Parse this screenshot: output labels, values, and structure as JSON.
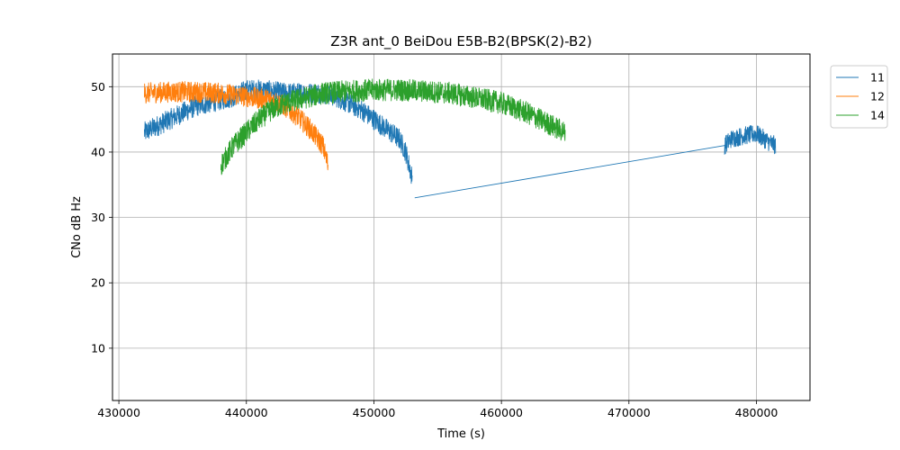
{
  "chart_data": {
    "type": "line",
    "title": "Z3R ant_0 BeiDou E5B-B2(BPSK(2)-B2)",
    "xlabel": "Time (s)",
    "ylabel": "CNo dB Hz",
    "xlim": [
      429500,
      484200
    ],
    "ylim": [
      2,
      55
    ],
    "xticks": [
      430000,
      440000,
      450000,
      460000,
      470000,
      480000
    ],
    "yticks": [
      10,
      20,
      30,
      40,
      50
    ],
    "grid": true,
    "legend_position": "outside-top-right",
    "series": [
      {
        "name": "11",
        "color": "#1f77b4",
        "segments": [
          {
            "x": [
              432000,
              433000,
              434000,
              435000,
              436000,
              437000,
              438000,
              439000,
              440000,
              441000,
              442000,
              443000,
              444000,
              445000,
              446000,
              447000,
              448000,
              449000,
              450000,
              451000,
              452000,
              452500,
              453000
            ],
            "y": [
              43,
              44,
              45,
              46,
              47,
              47.5,
              48,
              48.5,
              49.5,
              49.5,
              49.3,
              49,
              49,
              49,
              49,
              48.5,
              47.5,
              46.5,
              45,
              43.5,
              42,
              40,
              36
            ],
            "noise": 1.6
          },
          {
            "x": [
              453200,
              477500
            ],
            "y": [
              33,
              41
            ],
            "noise": 0
          },
          {
            "x": [
              477500,
              478000,
              479000,
              480000,
              481000,
              481500
            ],
            "y": [
              41,
              42,
              42.5,
              42.8,
              41.5,
              41
            ],
            "noise": 1.4
          }
        ]
      },
      {
        "name": "12",
        "color": "#ff7f0e",
        "segments": [
          {
            "x": [
              432000,
              434000,
              436000,
              438000,
              440000,
              441000,
              442000,
              443000,
              444000,
              445000,
              446000,
              446400
            ],
            "y": [
              49,
              49.2,
              49.2,
              49,
              48.5,
              48.2,
              48,
              47,
              45.5,
              43.5,
              41,
              38
            ],
            "noise": 1.6
          }
        ]
      },
      {
        "name": "14",
        "color": "#2ca02c",
        "segments": [
          {
            "x": [
              438000,
              439000,
              440000,
              441000,
              442000,
              443000,
              444000,
              446000,
              448000,
              450000,
              452000,
              454000,
              456000,
              458000,
              460000,
              462000,
              463000,
              464000,
              465000
            ],
            "y": [
              38,
              41,
              43,
              45,
              46.5,
              47.5,
              48,
              49,
              49.3,
              49.5,
              49.5,
              49.3,
              49,
              48.3,
              47.5,
              46,
              45,
              44,
              43
            ],
            "noise": 1.7
          }
        ]
      }
    ]
  }
}
